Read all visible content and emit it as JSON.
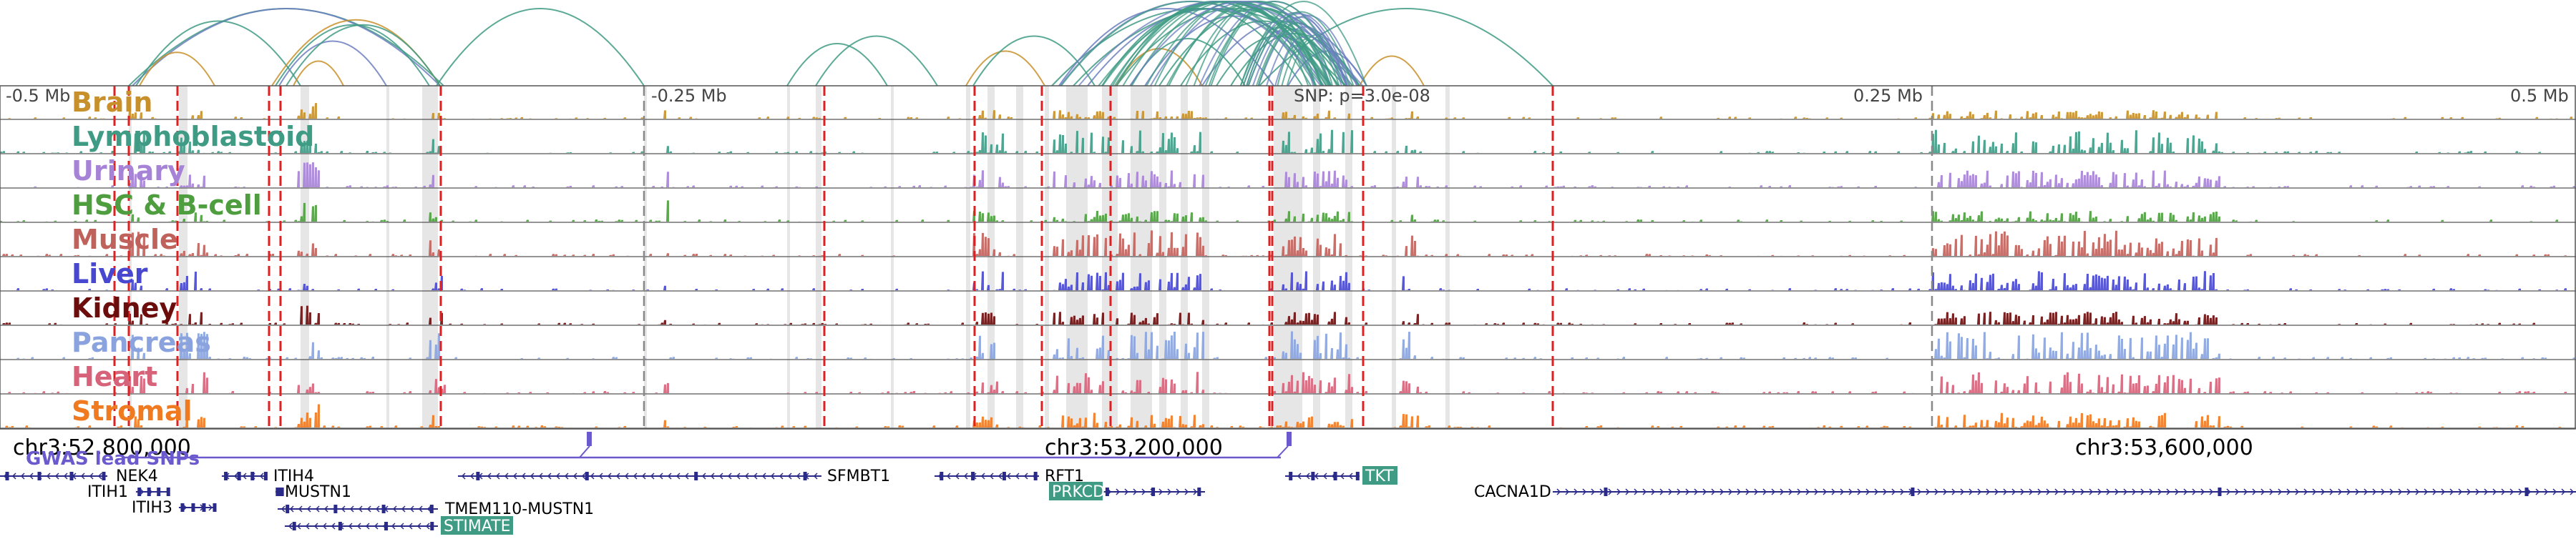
{
  "scale_labels": {
    "left": "-0.5 Mb",
    "left_mid": "-0.25 Mb",
    "snp": "SNP: p=3.0e-08",
    "right_mid": "0.25 Mb",
    "right": "0.5 Mb"
  },
  "tracks": [
    {
      "name": "Brain",
      "color": "#c8902a"
    },
    {
      "name": "Lymphoblastoid",
      "color": "#3f9b84"
    },
    {
      "name": "Urinary",
      "color": "#a683d6"
    },
    {
      "name": "HSC & B-cell",
      "color": "#4e9e3f"
    },
    {
      "name": "Muscle",
      "color": "#c0625c"
    },
    {
      "name": "Liver",
      "color": "#4747cf"
    },
    {
      "name": "Kidney",
      "color": "#6b0d0d"
    },
    {
      "name": "Pancreas",
      "color": "#8aa3de"
    },
    {
      "name": "Heart",
      "color": "#d6637a"
    },
    {
      "name": "Stromal",
      "color": "#f07a20"
    }
  ],
  "coordinates": {
    "left": "chr3:52,800,000",
    "center": "chr3:53,200,000",
    "right": "chr3:53,600,000"
  },
  "gwas_label": "GWAS lead SNPs",
  "genes": [
    {
      "name": "NEK4",
      "highlight": false
    },
    {
      "name": "ITIH1",
      "highlight": false
    },
    {
      "name": "ITIH3",
      "highlight": false
    },
    {
      "name": "ITIH4",
      "highlight": false
    },
    {
      "name": "MUSTN1",
      "highlight": false
    },
    {
      "name": "TMEM110-MUSTN1",
      "highlight": false
    },
    {
      "name": "STIMATE",
      "highlight": true
    },
    {
      "name": "SFMBT1",
      "highlight": false
    },
    {
      "name": "RFT1",
      "highlight": false
    },
    {
      "name": "PRKCD",
      "highlight": true
    },
    {
      "name": "TKT",
      "highlight": true
    },
    {
      "name": "CACNA1D",
      "highlight": false
    }
  ],
  "colors": {
    "loop_green": "#3f9b84",
    "loop_blue": "#6c7fc0",
    "loop_gold": "#c8902a",
    "peak_line": "#e02020",
    "gwas": "#6a5acd",
    "gene": "#2a2a8a",
    "gene_highlight_bg": "#3f9b84"
  }
}
